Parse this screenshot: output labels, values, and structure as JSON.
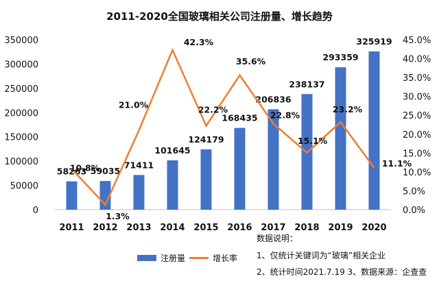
{
  "colors": {
    "bar": "#4472C4",
    "line": "#ED7D31",
    "text": "#111111",
    "axis": "#bfbfbf"
  },
  "chart_data": {
    "type": "bar+line",
    "title": "2011-2020全国玻璃相关公司注册量、增长趋势",
    "categories": [
      "2011",
      "2012",
      "2013",
      "2014",
      "2015",
      "2016",
      "2017",
      "2018",
      "2019",
      "2020"
    ],
    "series": [
      {
        "name": "注册量",
        "type": "bar",
        "axis": "left",
        "values": [
          58263,
          59035,
          71411,
          101645,
          124179,
          168435,
          206836,
          238137,
          293359,
          325919
        ],
        "labels": [
          "58263",
          "59035",
          "71411",
          "101645",
          "124179",
          "168435",
          "206836",
          "238137",
          "293359",
          "325919"
        ]
      },
      {
        "name": "增长率",
        "type": "line",
        "axis": "right",
        "values": [
          10.8,
          1.3,
          21.0,
          42.3,
          22.2,
          35.6,
          22.8,
          15.1,
          23.2,
          11.1
        ],
        "labels": [
          "10.8%",
          "1.3%",
          "21.0%",
          "42.3%",
          "22.2%",
          "35.6%",
          "22.8%",
          "15.1%",
          "23.2%",
          "11.1%"
        ]
      }
    ],
    "ylim_left": [
      0,
      350000
    ],
    "yticks_left": [
      "0",
      "50000",
      "100000",
      "150000",
      "200000",
      "250000",
      "300000",
      "350000"
    ],
    "ylim_right": [
      0,
      45
    ],
    "yticks_right": [
      "0.0%",
      "5.0%",
      "10.0%",
      "15.0%",
      "20.0%",
      "25.0%",
      "30.0%",
      "35.0%",
      "40.0%",
      "45.0%"
    ],
    "legend": [
      "注册量",
      "增长率"
    ]
  },
  "notes": {
    "heading": "数据说明：",
    "line1": "1、仅统计关键词为“玻璃”相关企业",
    "line2": "2、统计时间2021.7.19 3、数据来源：企查查"
  }
}
